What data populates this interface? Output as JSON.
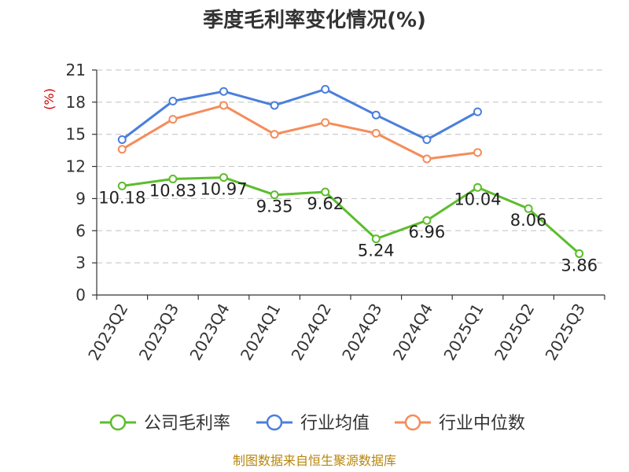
{
  "chart_data": {
    "type": "line",
    "title": "季度毛利率变化情况(%)",
    "ylabel": "(%)",
    "ylim": [
      0,
      21
    ],
    "yticks": [
      0,
      3,
      6,
      9,
      12,
      15,
      18,
      21
    ],
    "grid": true,
    "legend_position": "bottom",
    "categories": [
      "2023Q2",
      "2023Q3",
      "2023Q4",
      "2024Q1",
      "2024Q2",
      "2024Q3",
      "2024Q4",
      "2025Q1",
      "2025Q2",
      "2025Q3"
    ],
    "series": [
      {
        "name": "公司毛利率",
        "color": "#5cbd2c",
        "values": [
          10.18,
          10.83,
          10.97,
          9.35,
          9.62,
          5.24,
          6.96,
          10.04,
          8.06,
          3.86
        ],
        "labels": [
          "10.18",
          "10.83",
          "10.97",
          "9.35",
          "9.62",
          "5.24",
          "6.96",
          "10.04",
          "8.06",
          "3.86"
        ]
      },
      {
        "name": "行业均值",
        "color": "#4a7fdc",
        "values": [
          14.5,
          18.1,
          19.0,
          17.7,
          19.2,
          16.8,
          14.5,
          17.1,
          null,
          null
        ]
      },
      {
        "name": "行业中位数",
        "color": "#f58c5a",
        "values": [
          13.6,
          16.4,
          17.7,
          15.0,
          16.1,
          15.1,
          12.7,
          13.3,
          null,
          null
        ]
      }
    ],
    "source": "制图数据来自恒生聚源数据库"
  }
}
